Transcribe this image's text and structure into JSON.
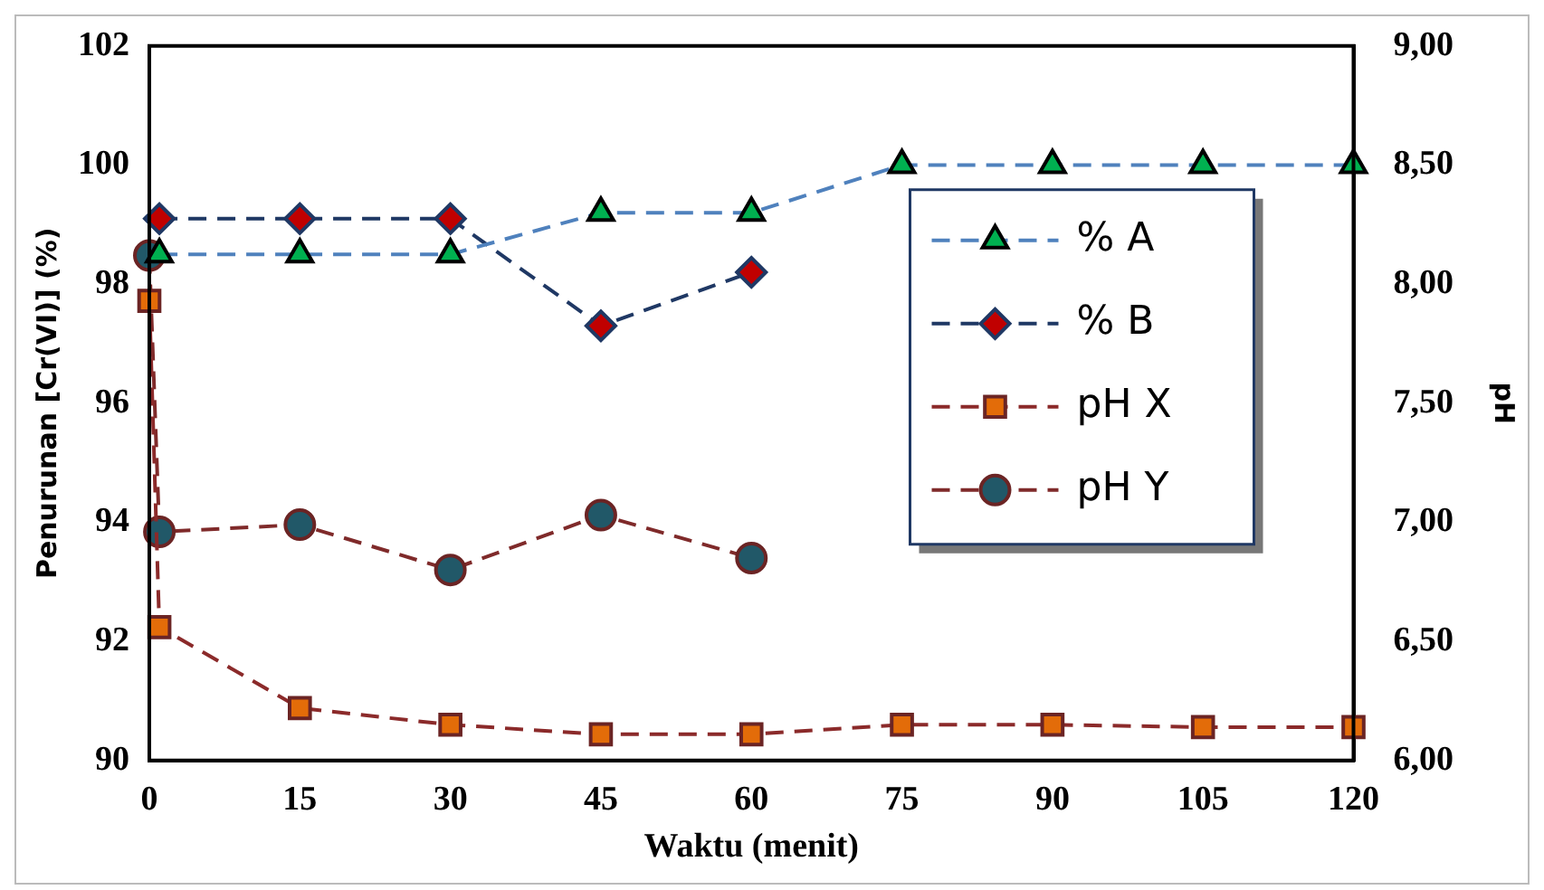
{
  "chart_data": {
    "type": "line",
    "xlabel": "Waktu (menit)",
    "ylabel": "Penurunan [Cr(VI)] (%)",
    "y2label": "pH",
    "xlim": [
      0,
      120
    ],
    "xticks": [
      0,
      15,
      30,
      45,
      60,
      75,
      90,
      105,
      120
    ],
    "ylim": [
      90,
      102
    ],
    "yticks": [
      90,
      92,
      94,
      96,
      98,
      100,
      102
    ],
    "y2lim": [
      6,
      9
    ],
    "y2ticks": [
      {
        "value": 6,
        "label": "6,00"
      },
      {
        "value": 6.5,
        "label": "6,50"
      },
      {
        "value": 7,
        "label": "7,00"
      },
      {
        "value": 7.5,
        "label": "7,50"
      },
      {
        "value": 8,
        "label": "8,00"
      },
      {
        "value": 8.5,
        "label": "8,50"
      },
      {
        "value": 9,
        "label": "9,00"
      }
    ],
    "grid": false,
    "legend": "right",
    "line_style": "dashed",
    "series": [
      {
        "name": "% A",
        "color": "#4f81bd",
        "colors": [
          "#00b050",
          "#00b050",
          "#00b050",
          "#00b050",
          "#00b050",
          "#00b050",
          "#00b050",
          "#00b050",
          "#00b050"
        ],
        "marker": "triangle",
        "x": [
          1,
          15,
          30,
          45,
          60,
          75,
          90,
          105,
          120
        ],
        "values": [
          98.5,
          98.5,
          98.5,
          99.2,
          99.2,
          100,
          100,
          100,
          100
        ]
      },
      {
        "name": "% B",
        "color": "#1f3864",
        "colors": [
          "#c00000",
          "#c00000",
          "#c00000",
          "#c00000",
          "#c00000"
        ],
        "marker": "diamond",
        "x": [
          1,
          15,
          30,
          45,
          60
        ],
        "values": [
          99.1,
          99.1,
          99.1,
          97.3,
          98.2
        ]
      },
      {
        "name": "pH X",
        "color": "#8b2a2a",
        "colors": [
          "#e36c09",
          "#e36c09",
          "#e36c09",
          "#e36c09",
          "#e36c09",
          "#e36c09",
          "#e36c09",
          "#e36c09",
          "#e36c09",
          "#e36c09"
        ],
        "marker": "square",
        "axis": "y2",
        "x": [
          0,
          1,
          15,
          30,
          45,
          60,
          75,
          90,
          105,
          120
        ],
        "values": [
          7.93,
          6.56,
          6.22,
          6.15,
          6.11,
          6.11,
          6.15,
          6.15,
          6.14,
          6.14
        ]
      },
      {
        "name": "pH Y",
        "color": "#7f2a2a",
        "colors": [
          "#215868",
          "#215868",
          "#215868",
          "#215868",
          "#215868",
          "#215868"
        ],
        "marker": "circle",
        "axis": "y2",
        "x": [
          0,
          1,
          15,
          30,
          45,
          60
        ],
        "values": [
          8.12,
          6.96,
          6.99,
          6.8,
          7.03,
          6.85
        ]
      }
    ]
  }
}
